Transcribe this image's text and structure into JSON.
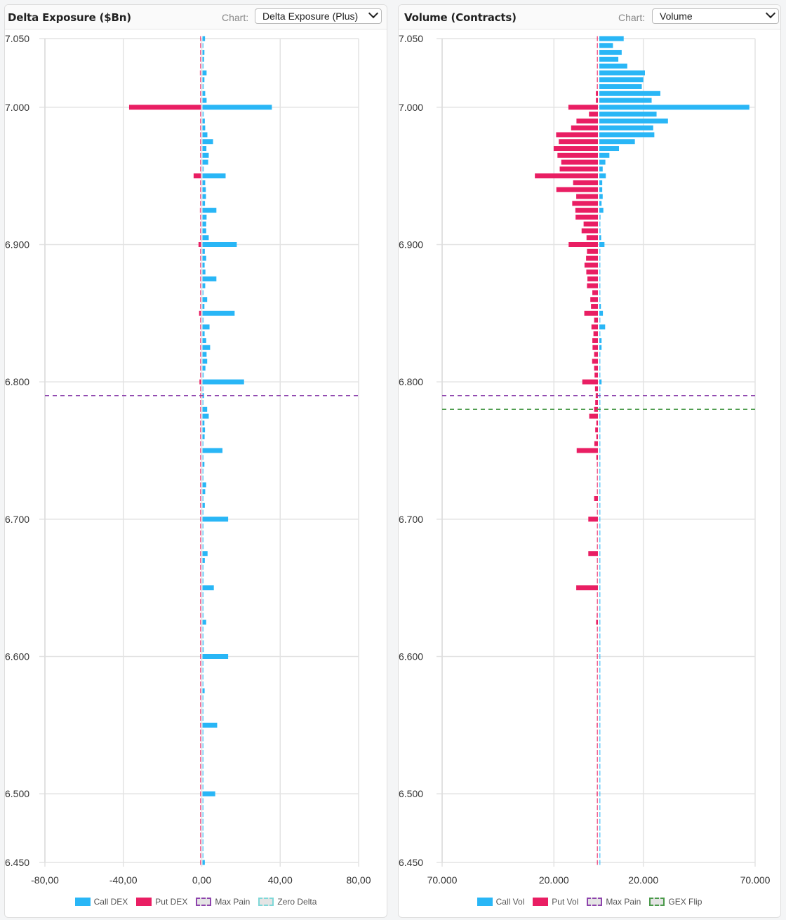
{
  "panels": [
    {
      "title": "Delta Exposure ($Bn)",
      "chart_label": "Chart:",
      "chart_select": "Delta Exposure (Plus)",
      "legend": [
        {
          "label": "Call DEX",
          "style": "solid",
          "color": "#29b6f6"
        },
        {
          "label": "Put DEX",
          "style": "solid",
          "color": "#e91e63"
        },
        {
          "label": "Max Pain",
          "style": "dashed",
          "color": "#8e44ad"
        },
        {
          "label": "Zero Delta",
          "style": "dashed",
          "color": "#7fd8d8"
        }
      ]
    },
    {
      "title": "Volume (Contracts)",
      "chart_label": "Chart:",
      "chart_select": "Volume",
      "legend": [
        {
          "label": "Call Vol",
          "style": "solid",
          "color": "#29b6f6"
        },
        {
          "label": "Put Vol",
          "style": "solid",
          "color": "#e91e63"
        },
        {
          "label": "Max Pain",
          "style": "dashed",
          "color": "#8e44ad"
        },
        {
          "label": "GEX Flip",
          "style": "dashed",
          "color": "#4a9a4a"
        }
      ]
    }
  ],
  "chart_data": [
    {
      "type": "bar",
      "orientation": "horizontal",
      "title": "Delta Exposure ($Bn)",
      "xlim": [
        -80,
        80
      ],
      "ylim": [
        6450,
        7050
      ],
      "x_ticks": [
        -80,
        -40,
        0,
        40,
        80
      ],
      "x_tick_labels": [
        "-80,00",
        "-40,00",
        "0,00",
        "40,00",
        "80,00"
      ],
      "y_ticks": [
        7050,
        7000,
        6900,
        6800,
        6700,
        6600,
        6500,
        6450
      ],
      "y_tick_labels": [
        "7.050",
        "7.000",
        "6.900",
        "6.800",
        "6.700",
        "6.600",
        "6.500",
        "6.450"
      ],
      "grid": true,
      "legend_position": "bottom",
      "strike_start": 7050,
      "strike_end": 6450,
      "strike_step": 5,
      "series": [
        {
          "name": "Call DEX",
          "color": "#29b6f6",
          "values": [
            1.3,
            0.3,
            1.0,
            0.8,
            0.6,
            2.1,
            1.0,
            0.7,
            1.4,
            2.1,
            35.4,
            0.7,
            1.2,
            1.4,
            2.5,
            5.4,
            2.0,
            3.2,
            2.9,
            0.7,
            11.8,
            1.4,
            1.7,
            1.8,
            1.3,
            7.1,
            2.1,
            1.9,
            1.9,
            3.2,
            17.5,
            1.2,
            1.9,
            1.1,
            1.5,
            7.1,
            1.4,
            0.6,
            2.4,
            1.0,
            16.4,
            0.6,
            3.6,
            1.1,
            1.9,
            3.9,
            2.1,
            2.4,
            1.5,
            0.7,
            21.2,
            0.5,
            0.8,
            0.4,
            2.4,
            3.2,
            1.0,
            1.3,
            1.1,
            0.5,
            10.2,
            0.3,
            1.0,
            0.5,
            0.5,
            1.9,
            1.4,
            0.4,
            1.2,
            0.4,
            13.1,
            0.4,
            0.4,
            0.3,
            0.6,
            2.6,
            1.2,
            0.3,
            0.7,
            0.1,
            5.8,
            0.4,
            0.6,
            0.4,
            0.6,
            1.9,
            0.4,
            0.4,
            0.7,
            0.7,
            13.1,
            0.4,
            0.4,
            0.3,
            0.4,
            1.1,
            0.4,
            0.1,
            0.4,
            0.1,
            7.5,
            0.1,
            0.4,
            0.1,
            0.1,
            0.4,
            0.1,
            0.1,
            0.4,
            0.1,
            6.5,
            0.1,
            0.1,
            0.1,
            0.4,
            0.1,
            0.1,
            0.1,
            0.1,
            0.1,
            1.2
          ]
        },
        {
          "name": "Put DEX",
          "color": "#e91e63",
          "values": [
            -0.3,
            -0.2,
            -0.1,
            -0.1,
            -0.1,
            -0.6,
            -0.1,
            -0.2,
            -0.2,
            -0.2,
            -36.7,
            -0.2,
            -0.2,
            -0.1,
            -0.1,
            -0.5,
            -0.1,
            -0.4,
            -0.4,
            -0.1,
            -3.8,
            -0.1,
            -0.1,
            -0.1,
            -0.1,
            -0.6,
            -0.1,
            -0.2,
            -0.1,
            -0.2,
            -1.3,
            -0.2,
            -0.1,
            -0.2,
            -0.2,
            -0.4,
            -0.2,
            -0.2,
            -0.1,
            -0.2,
            -1.0,
            -0.2,
            -0.2,
            -0.2,
            -0.2,
            -0.2,
            -0.2,
            -0.2,
            -0.2,
            -0.2,
            -0.8,
            -0.2,
            -0.2,
            -0.2,
            -0.2,
            -0.2,
            -0.2,
            -0.2,
            -0.2,
            -0.2,
            -0.4,
            -0.2,
            -0.2,
            -0.2,
            -0.2,
            -0.2,
            -0.2,
            -0.2,
            -0.2,
            -0.2,
            -0.3,
            -0.2,
            -0.2,
            -0.2,
            -0.2,
            -0.2,
            -0.2,
            -0.2,
            -0.2,
            -0.2,
            -0.2,
            -0.2,
            -0.2,
            -0.2,
            -0.2,
            -0.2,
            -0.2,
            -0.2,
            -0.2,
            -0.2,
            -0.2,
            -0.2,
            -0.2,
            -0.2,
            -0.2,
            -0.2,
            -0.2,
            -0.2,
            -0.2,
            -0.2,
            -0.2,
            -0.2,
            -0.2,
            -0.2,
            -0.2,
            -0.2,
            -0.2,
            -0.2,
            -0.2,
            -0.2,
            -0.2,
            -0.2,
            -0.2,
            -0.2,
            -0.2,
            -0.2,
            -0.2,
            -0.2,
            -0.2,
            -0.2,
            -0.2
          ]
        }
      ],
      "reference_lines": [
        {
          "name": "Max Pain",
          "strike": 6790,
          "color": "#8e44ad"
        }
      ]
    },
    {
      "type": "bar",
      "orientation": "horizontal",
      "title": "Volume (Contracts)",
      "xlim": [
        -70000,
        70000
      ],
      "ylim": [
        6450,
        7050
      ],
      "x_ticks": [
        -70000,
        -20000,
        20000,
        70000
      ],
      "x_tick_labels": [
        "70.000",
        "20.000",
        "20.000",
        "70.000"
      ],
      "y_ticks": [
        7050,
        7000,
        6900,
        6800,
        6700,
        6600,
        6500,
        6450
      ],
      "y_tick_labels": [
        "7.050",
        "7.000",
        "6.900",
        "6.800",
        "6.700",
        "6.600",
        "6.500",
        "6.450"
      ],
      "grid": true,
      "legend_position": "bottom",
      "strike_start": 7050,
      "strike_end": 6450,
      "strike_step": 5,
      "series": [
        {
          "name": "Call Vol",
          "color": "#29b6f6",
          "values": [
            10900,
            6100,
            10000,
            8500,
            12500,
            20400,
            19700,
            19000,
            27300,
            23400,
            67100,
            25600,
            30700,
            24100,
            24600,
            15900,
            8800,
            4500,
            2700,
            1500,
            2900,
            1300,
            1300,
            1500,
            1000,
            1800,
            600,
            400,
            600,
            800,
            2300,
            400,
            400,
            400,
            400,
            400,
            300,
            200,
            400,
            700,
            1600,
            200,
            2600,
            300,
            1000,
            1000,
            200,
            200,
            400,
            100,
            1000,
            50,
            50,
            50,
            50,
            50,
            50,
            50,
            50,
            50,
            50,
            50,
            50,
            50,
            50,
            50,
            50,
            50,
            50,
            50,
            300,
            50,
            50,
            50,
            50,
            50,
            50,
            50,
            50,
            50,
            50,
            50,
            50,
            50,
            50,
            50,
            50,
            50,
            50,
            50,
            50,
            50,
            50,
            50,
            50,
            50,
            50,
            50,
            50,
            50,
            50,
            50,
            50,
            50,
            50,
            50,
            50,
            50,
            50,
            50,
            50,
            50,
            50,
            50,
            50,
            50,
            50,
            50,
            50,
            50,
            50
          ]
        },
        {
          "name": "Put Vol",
          "color": "#e91e63",
          "values": [
            200,
            100,
            100,
            100,
            400,
            400,
            500,
            500,
            900,
            900,
            13200,
            4000,
            9600,
            12000,
            18700,
            17500,
            19800,
            18100,
            16400,
            17100,
            28200,
            11100,
            18600,
            9700,
            11500,
            10100,
            10000,
            6400,
            7300,
            5100,
            13100,
            4900,
            5300,
            6000,
            5200,
            4700,
            4900,
            2500,
            3400,
            3100,
            6100,
            1700,
            2900,
            2000,
            2500,
            2400,
            1700,
            2600,
            1700,
            1500,
            7000,
            1300,
            1000,
            1200,
            1700,
            3900,
            700,
            1200,
            700,
            1600,
            9500,
            700,
            500,
            200,
            200,
            200,
            200,
            1700,
            400,
            200,
            4300,
            300,
            300,
            200,
            200,
            4300,
            200,
            200,
            200,
            100,
            9700,
            200,
            200,
            200,
            600,
            800,
            200,
            200,
            200,
            200,
            500,
            200,
            200,
            200,
            200,
            500,
            200,
            100,
            200,
            100,
            600,
            100,
            200,
            100,
            100,
            200,
            100,
            100,
            200,
            300,
            600,
            100,
            100,
            100,
            200,
            100,
            100,
            100,
            300,
            100,
            100
          ]
        }
      ],
      "reference_lines": [
        {
          "name": "Max Pain",
          "strike": 6790,
          "color": "#8e44ad"
        },
        {
          "name": "GEX Flip",
          "strike": 6780,
          "color": "#4a9a4a"
        }
      ]
    }
  ]
}
